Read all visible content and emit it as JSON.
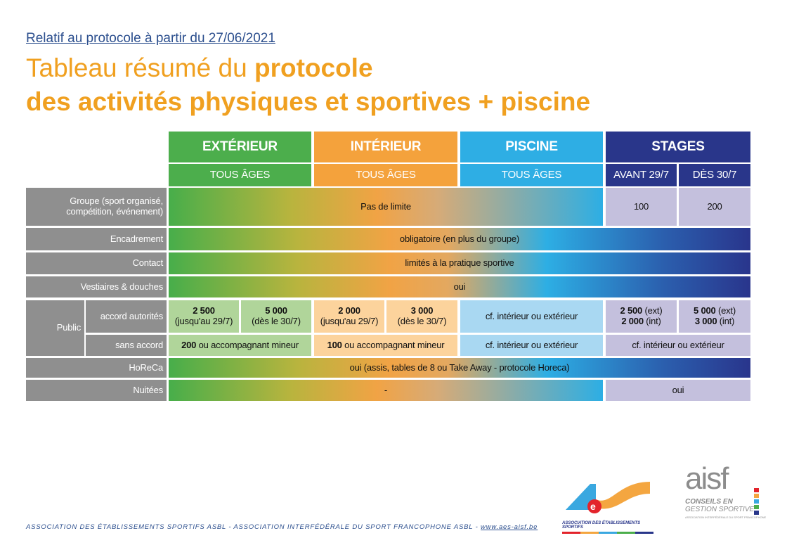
{
  "header": {
    "subtitle": "Relatif au protocole à partir du 27/06/2021",
    "title_light": "Tableau résumé du ",
    "title_bold": "protocole",
    "title_line2": "des activités physiques et sportives + piscine"
  },
  "columns": {
    "exterieur": {
      "label": "EXTÉRIEUR",
      "sub": "TOUS ÂGES",
      "color": "#4cae4c"
    },
    "interieur": {
      "label": "INTÉRIEUR",
      "sub": "TOUS ÂGES",
      "color": "#f4a23c"
    },
    "piscine": {
      "label": "PISCINE",
      "sub": "TOUS ÂGES",
      "color": "#2eaee4"
    },
    "stages": {
      "label": "STAGES",
      "sub_avant": "AVANT 29/7",
      "sub_des": "DÈS 30/7",
      "color": "#29368a"
    }
  },
  "rows": {
    "groupe": {
      "label": "Groupe (sport organisé, compétition, événement)",
      "value": "Pas de limite",
      "stages_avant": "100",
      "stages_des": "200"
    },
    "encadrement": {
      "label": "Encadrement",
      "value": "obligatoire  (en plus du groupe)"
    },
    "contact": {
      "label": "Contact",
      "value": "limités à la pratique sportive"
    },
    "vestiaires": {
      "label": "Vestiaires & douches",
      "value": "oui"
    },
    "public": {
      "label": "Public",
      "accord": {
        "label": "accord autorités",
        "ext1_num": "2 500",
        "ext1_note": "(jusqu'au 29/7)",
        "ext2_num": "5 000",
        "ext2_note": "(dès le 30/7)",
        "int1_num": "2 000",
        "int1_note": "(jusqu'au 29/7)",
        "int2_num": "3 000",
        "int2_note": "(dès le 30/7)",
        "piscine": "cf. intérieur ou extérieur",
        "stages1_ext_num": "2 500",
        "stages1_ext": "(ext)",
        "stages1_int_num": "2 000",
        "stages1_int": "(int)",
        "stages2_ext_num": "5 000",
        "stages2_ext": "(ext)",
        "stages2_int_num": "3 000",
        "stages2_int": "(int)"
      },
      "sans": {
        "label": "sans accord",
        "ext_num": "200",
        "ext_text": " ou accompagnant mineur",
        "int_num": "100",
        "int_text": " ou accompagnant mineur",
        "piscine": "cf. intérieur ou extérieur",
        "stages": "cf. intérieur ou extérieur"
      }
    },
    "horeca": {
      "label": "HoReCa",
      "value": "oui (assis, tables de 8 ou Take Away - protocole Horeca)"
    },
    "nuitees": {
      "label": "Nuitées",
      "value": "-",
      "stages": "oui"
    }
  },
  "footer": {
    "text": "ASSOCIATION DES ÉTABLISSEMENTS SPORTIFS ASBL - ASSOCIATION INTERFÉDÉRALE DU SPORT FRANCOPHONE ASBL - ",
    "link": "www.aes-aisf.be"
  },
  "logos": {
    "aes": {
      "text": "ASSOCIATION DES ÉTABLISSEMENTS SPORTIFS"
    },
    "aisf": {
      "mark": "aisf",
      "line1": "CONSEILS EN",
      "line2": "GESTION SPORTIVE",
      "line3": "ASSOCIATION INTERFÉDÉRALE DU SPORT FRANCOPHONE"
    }
  }
}
